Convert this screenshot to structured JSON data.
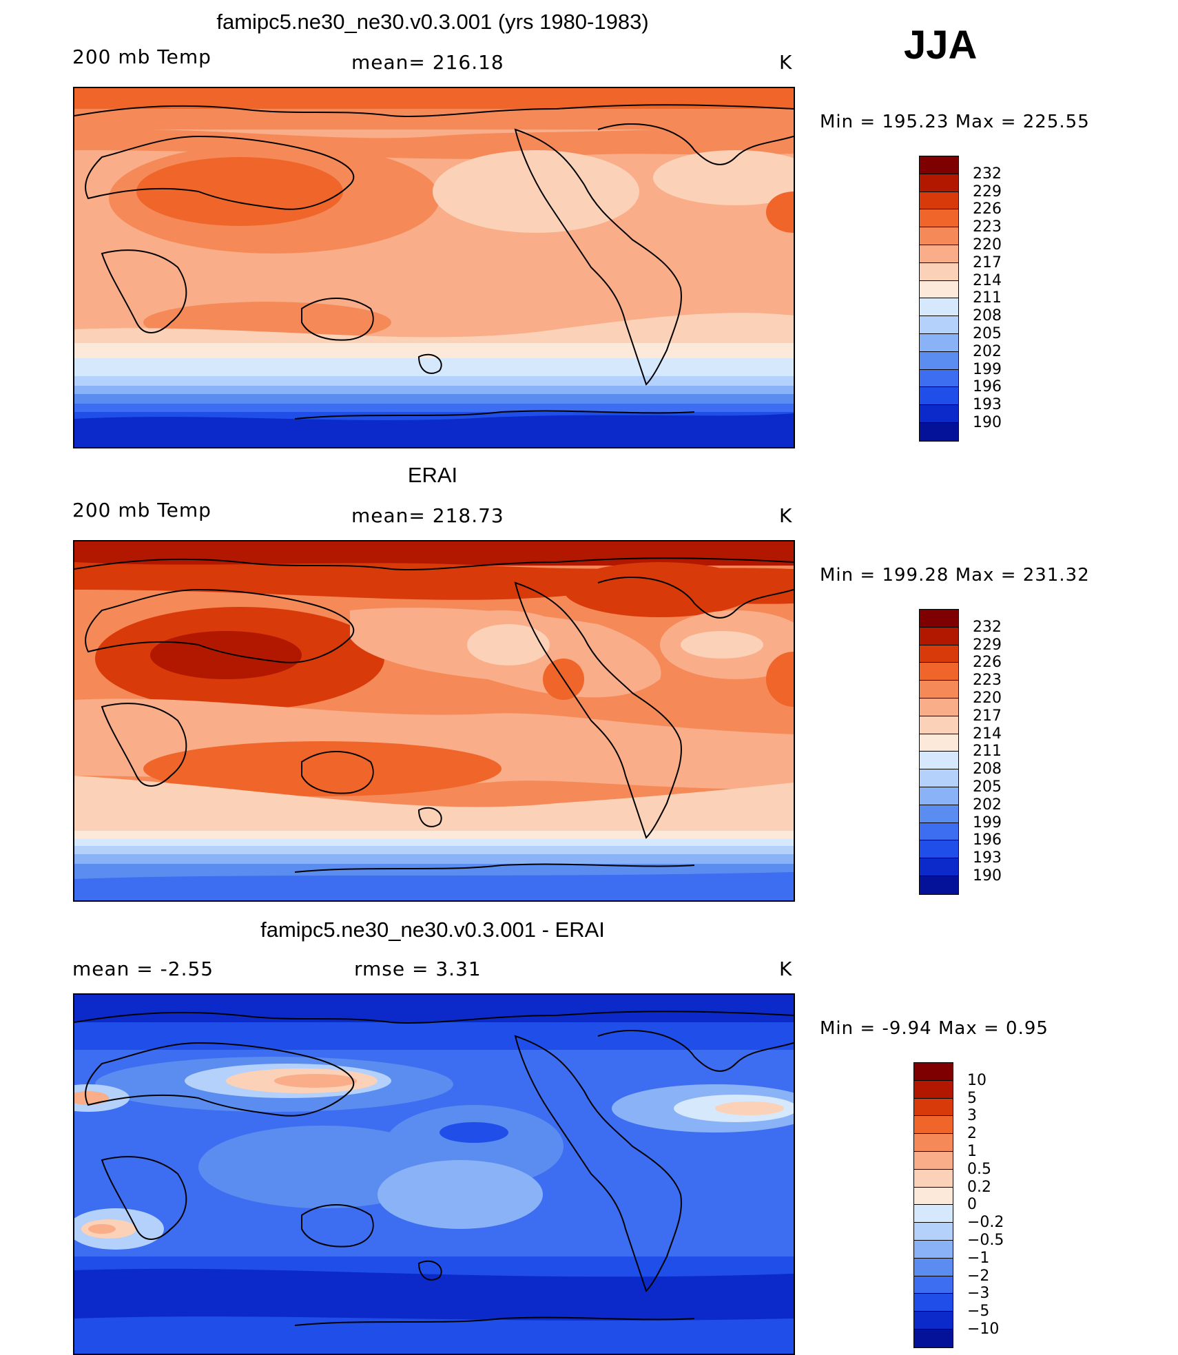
{
  "season": "JJA",
  "panels": [
    {
      "title": "famipc5.ne30_ne30.v0.3.001 (yrs 1980-1983)",
      "left_label": "200 mb Temp",
      "center_label": "mean= 216.18",
      "units": "K",
      "minmax": "Min = 195.23 Max = 225.55",
      "levels": [
        "232",
        "229",
        "226",
        "223",
        "220",
        "217",
        "214",
        "211",
        "208",
        "205",
        "202",
        "199",
        "196",
        "193",
        "190"
      ],
      "colors": [
        "#7f0000",
        "#b21800",
        "#d93a0a",
        "#f0652a",
        "#f58a58",
        "#f9ad88",
        "#fbd1b8",
        "#fde9da",
        "#d6e8fb",
        "#b3d1fb",
        "#8ab2f7",
        "#5b8cf0",
        "#3d6df0",
        "#1f4ee8",
        "#0b2ac9",
        "#04129a"
      ]
    },
    {
      "title": "ERAI",
      "left_label": "200 mb Temp",
      "center_label": "mean= 218.73",
      "units": "K",
      "minmax": "Min = 199.28 Max = 231.32",
      "levels": [
        "232",
        "229",
        "226",
        "223",
        "220",
        "217",
        "214",
        "211",
        "208",
        "205",
        "202",
        "199",
        "196",
        "193",
        "190"
      ],
      "colors": [
        "#7f0000",
        "#b21800",
        "#d93a0a",
        "#f0652a",
        "#f58a58",
        "#f9ad88",
        "#fbd1b8",
        "#fde9da",
        "#d6e8fb",
        "#b3d1fb",
        "#8ab2f7",
        "#5b8cf0",
        "#3d6df0",
        "#1f4ee8",
        "#0b2ac9",
        "#04129a"
      ]
    },
    {
      "title": "famipc5.ne30_ne30.v0.3.001 - ERAI",
      "left_label": "mean = -2.55",
      "center_label": "rmse = 3.31",
      "units": "K",
      "minmax": "Min = -9.94 Max = 0.95",
      "levels": [
        "10",
        "5",
        "3",
        "2",
        "1",
        "0.5",
        "0.2",
        "0",
        "-0.2",
        "-0.5",
        "-1",
        "-2",
        "-3",
        "-5",
        "-10"
      ],
      "colors": [
        "#7f0000",
        "#b21800",
        "#d93a0a",
        "#f0652a",
        "#f58a58",
        "#f9ad88",
        "#fbd1b8",
        "#fde9da",
        "#d6e8fb",
        "#b3d1fb",
        "#8ab2f7",
        "#5b8cf0",
        "#3d6df0",
        "#1f4ee8",
        "#0b2ac9",
        "#04129a"
      ]
    }
  ]
}
